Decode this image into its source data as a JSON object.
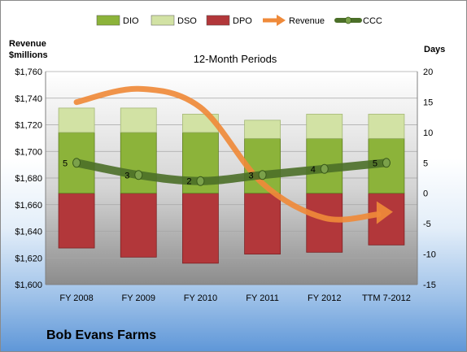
{
  "company_name": "Bob Evans Farms",
  "chart_data": {
    "type": "bar",
    "title": "12-Month Periods",
    "left_axis_label_line1": "Revenue",
    "left_axis_label_line2": "$millions",
    "right_axis_label": "Days",
    "categories": [
      "FY 2008",
      "FY 2009",
      "FY 2010",
      "FY 2011",
      "FY 2012",
      "TTM 7-2012"
    ],
    "left_axis": {
      "min": 1600,
      "max": 1760,
      "step": 20,
      "ticks": [
        "$1,600",
        "$1,620",
        "$1,640",
        "$1,660",
        "$1,680",
        "$1,700",
        "$1,720",
        "$1,740",
        "$1,760"
      ]
    },
    "right_axis": {
      "min": -15,
      "max": 20,
      "step": 5,
      "ticks": [
        "-15",
        "-10",
        "-5",
        "0",
        "5",
        "10",
        "15",
        "20"
      ]
    },
    "legend_position": "top",
    "series": [
      {
        "name": "DIO",
        "kind": "bar-stacked-positive",
        "axis": "right",
        "color": "#8cb33a",
        "values": [
          10,
          10,
          10,
          9,
          9,
          9
        ]
      },
      {
        "name": "DSO",
        "kind": "bar-stacked-positive",
        "axis": "right",
        "color": "#d2e2a4",
        "values": [
          4,
          4,
          3,
          3,
          4,
          4
        ]
      },
      {
        "name": "DPO",
        "kind": "bar-negative",
        "axis": "right",
        "color": "#b2373a",
        "values": [
          -9,
          -10.5,
          -11.5,
          -10,
          -9.7,
          -8.5
        ]
      },
      {
        "name": "Revenue",
        "kind": "line-arrow",
        "axis": "left",
        "color": "#ef8a3a",
        "values": [
          1737,
          1747,
          1733,
          1676,
          1650,
          1654
        ]
      },
      {
        "name": "CCC",
        "kind": "line",
        "axis": "right",
        "color": "#4b6f28",
        "values": [
          5,
          3,
          2,
          3,
          4,
          5
        ],
        "data_labels": [
          "5",
          "3",
          "2",
          "3",
          "4",
          "5"
        ]
      }
    ]
  }
}
